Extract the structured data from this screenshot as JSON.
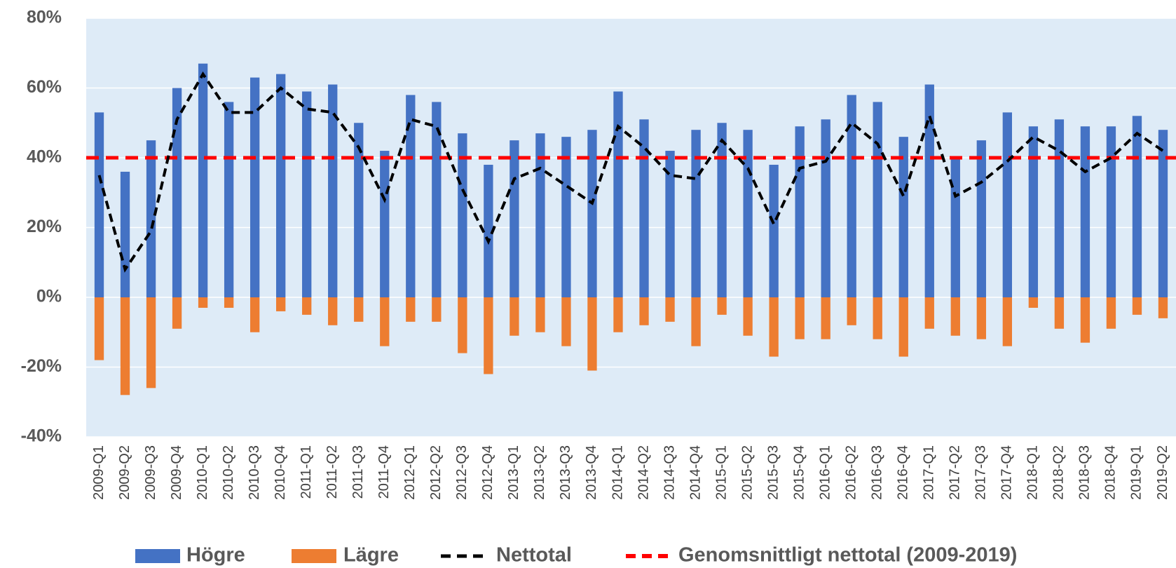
{
  "chart_data": {
    "type": "bar",
    "categories": [
      "2009-Q1",
      "2009-Q2",
      "2009-Q3",
      "2009-Q4",
      "2010-Q1",
      "2010-Q2",
      "2010-Q3",
      "2010-Q4",
      "2011-Q1",
      "2011-Q2",
      "2011-Q3",
      "2011-Q4",
      "2012-Q1",
      "2012-Q2",
      "2012-Q3",
      "2012-Q4",
      "2013-Q1",
      "2013-Q2",
      "2013-Q3",
      "2013-Q4",
      "2014-Q1",
      "2014-Q2",
      "2014-Q3",
      "2014-Q4",
      "2015-Q1",
      "2015-Q2",
      "2015-Q3",
      "2015-Q4",
      "2016-Q1",
      "2016-Q2",
      "2016-Q3",
      "2016-Q4",
      "2017-Q1",
      "2017-Q2",
      "2017-Q3",
      "2017-Q4",
      "2018-Q1",
      "2018-Q2",
      "2018-Q3",
      "2018-Q4",
      "2019-Q1",
      "2019-Q2"
    ],
    "series": [
      {
        "name": "Högre",
        "type": "bar",
        "color": "#4472c4",
        "values": [
          53,
          36,
          45,
          60,
          67,
          56,
          63,
          64,
          59,
          61,
          50,
          42,
          58,
          56,
          47,
          38,
          45,
          47,
          46,
          48,
          59,
          51,
          42,
          48,
          50,
          48,
          38,
          49,
          51,
          58,
          56,
          46,
          61,
          40,
          45,
          53,
          49,
          51,
          49,
          49,
          52,
          48
        ]
      },
      {
        "name": "Lägre",
        "type": "bar",
        "color": "#ed7d31",
        "values": [
          -18,
          -28,
          -26,
          -9,
          -3,
          -3,
          -10,
          -4,
          -5,
          -8,
          -7,
          -14,
          -7,
          -7,
          -16,
          -22,
          -11,
          -10,
          -14,
          -21,
          -10,
          -8,
          -7,
          -14,
          -5,
          -11,
          -17,
          -12,
          -12,
          -8,
          -12,
          -17,
          -9,
          -11,
          -12,
          -14,
          -3,
          -9,
          -13,
          -9,
          -5,
          -6
        ]
      },
      {
        "name": "Nettotal",
        "type": "line",
        "color": "#000000",
        "values": [
          35,
          8,
          19,
          51,
          64,
          53,
          53,
          60,
          54,
          53,
          43,
          28,
          51,
          49,
          31,
          16,
          34,
          37,
          32,
          27,
          49,
          43,
          35,
          34,
          45,
          37,
          21,
          37,
          39,
          50,
          44,
          29,
          52,
          29,
          33,
          39,
          46,
          42,
          36,
          40,
          47,
          42
        ]
      }
    ],
    "average": {
      "name": "Genomsnittligt nettotal (2009-2019)",
      "color": "#ff0000",
      "value": 40
    },
    "ylim": [
      -40,
      80
    ],
    "yticks": [
      {
        "value": -40,
        "label": "-40%"
      },
      {
        "value": -20,
        "label": "-20%"
      },
      {
        "value": 0,
        "label": "0%"
      },
      {
        "value": 20,
        "label": "20%"
      },
      {
        "value": 40,
        "label": "40%"
      },
      {
        "value": 60,
        "label": "60%"
      },
      {
        "value": 80,
        "label": "80%"
      }
    ],
    "grid": true
  }
}
